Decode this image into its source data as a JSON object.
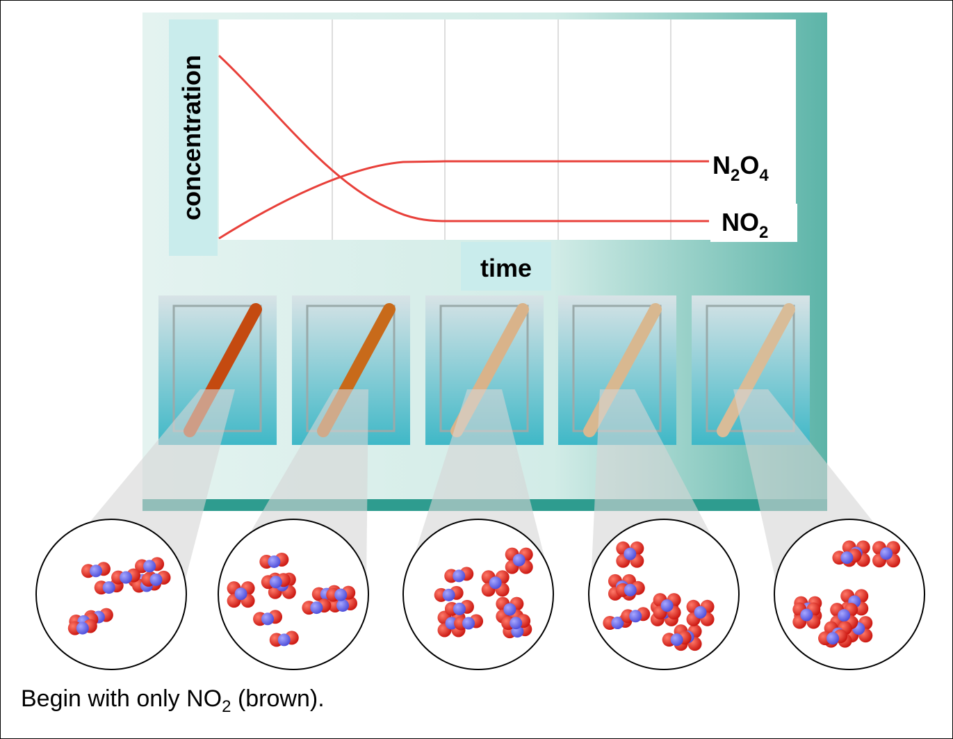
{
  "graph": {
    "y_label": "concentration",
    "x_label": "time",
    "curve_labels": [
      [
        "N",
        "2",
        "O",
        "4"
      ],
      [
        "NO",
        "2"
      ]
    ]
  },
  "caption": [
    "Begin with only NO",
    "2",
    " (brown)."
  ]
}
